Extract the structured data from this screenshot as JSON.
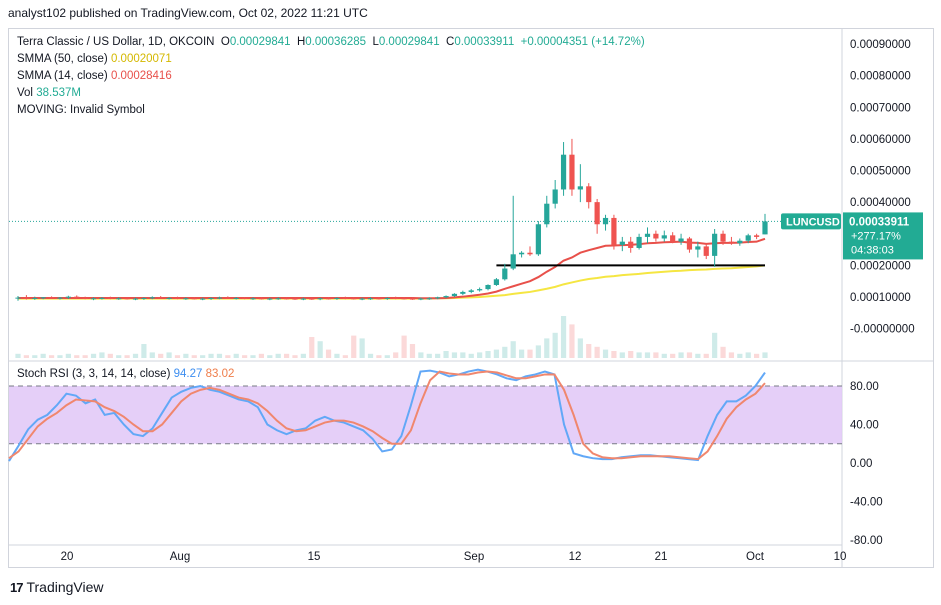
{
  "publisher": "analyst102 published on TradingView.com, Oct 02, 2022 11:21 UTC",
  "header": {
    "symbol": "Terra Classic / US Dollar, 1D, OKCOIN",
    "open_label": "O",
    "open": "0.00029841",
    "high_label": "H",
    "high": "0.00036285",
    "low_label": "L",
    "low": "0.00029841",
    "close_label": "C",
    "close": "0.00033911",
    "change": "+0.00004351 (+14.72%)"
  },
  "indicators": {
    "sma50_label": "SMMA (50, close)",
    "sma50_value": "0.00020071",
    "sma14_label": "SMMA (14, close)",
    "sma14_value": "0.00028416",
    "vol_label": "Vol",
    "vol_value": "38.537M",
    "moving_label": "MOVING: Invalid Symbol"
  },
  "price_tag": {
    "symbol": "LUNCUSD",
    "price": "0.00033911",
    "change_pct": "+277.17%",
    "countdown": "04:38:03"
  },
  "stoch": {
    "label": "Stoch RSI (3, 3, 14, 14, close)",
    "k_value": "94.27",
    "d_value": "83.02"
  },
  "logo_text": "TradingView",
  "colors": {
    "up": "#26a69a",
    "down": "#ef5350",
    "sma50": "#f5e642",
    "sma14": "#e8504a",
    "k_line": "#62a8f7",
    "d_line": "#f0876e",
    "stoch_band": "#e1c7f7",
    "tag": "#22ab94"
  },
  "chart_data": [
    {
      "type": "candlestick",
      "yaxis_ticks": [
        "0.00090000",
        "0.00080000",
        "0.00070000",
        "0.00060000",
        "0.00050000",
        "0.00040000",
        "0.00020000",
        "0.00010000",
        "-0.00000000"
      ],
      "xaxis_ticks": [
        "20",
        "Aug",
        "15",
        "Sep",
        "12",
        "21",
        "Oct",
        "10"
      ],
      "ylim": [
        -1e-05,
        0.00094
      ],
      "candles": [
        {
          "o": 9.5e-05,
          "h": 0.000103,
          "l": 8.8e-05,
          "c": 9.8e-05
        },
        {
          "o": 9.8e-05,
          "h": 0.000106,
          "l": 9.2e-05,
          "c": 9.6e-05
        },
        {
          "o": 9.6e-05,
          "h": 0.000101,
          "l": 9.1e-05,
          "c": 9.7e-05
        },
        {
          "o": 9.7e-05,
          "h": 0.0001,
          "l": 9.3e-05,
          "c": 9.9e-05
        },
        {
          "o": 9.9e-05,
          "h": 0.000102,
          "l": 9.4e-05,
          "c": 9.6e-05
        },
        {
          "o": 9.6e-05,
          "h": 0.0001,
          "l": 9.2e-05,
          "c": 9.8e-05
        },
        {
          "o": 9.8e-05,
          "h": 0.000104,
          "l": 9.4e-05,
          "c": 0.000101
        },
        {
          "o": 0.000101,
          "h": 0.000105,
          "l": 9.5e-05,
          "c": 9.7e-05
        },
        {
          "o": 9.7e-05,
          "h": 0.000101,
          "l": 9.3e-05,
          "c": 9.5e-05
        },
        {
          "o": 9.5e-05,
          "h": 9.9e-05,
          "l": 9e-05,
          "c": 9.6e-05
        },
        {
          "o": 9.6e-05,
          "h": 0.0001,
          "l": 9.2e-05,
          "c": 9.7e-05
        },
        {
          "o": 9.7e-05,
          "h": 0.000101,
          "l": 9.3e-05,
          "c": 9.5e-05
        },
        {
          "o": 9.5e-05,
          "h": 9.9e-05,
          "l": 9.1e-05,
          "c": 9.6e-05
        },
        {
          "o": 9.6e-05,
          "h": 9.9e-05,
          "l": 9.2e-05,
          "c": 9.4e-05
        },
        {
          "o": 9.4e-05,
          "h": 9.8e-05,
          "l": 9e-05,
          "c": 9.5e-05
        },
        {
          "o": 9.5e-05,
          "h": 9.9e-05,
          "l": 9.1e-05,
          "c": 9.7e-05
        },
        {
          "o": 9.7e-05,
          "h": 0.000102,
          "l": 9.3e-05,
          "c": 9.9e-05
        },
        {
          "o": 9.9e-05,
          "h": 0.000103,
          "l": 9.5e-05,
          "c": 9.6e-05
        },
        {
          "o": 9.6e-05,
          "h": 0.0001,
          "l": 9.2e-05,
          "c": 9.7e-05
        },
        {
          "o": 9.7e-05,
          "h": 0.000101,
          "l": 9.3e-05,
          "c": 9.5e-05
        },
        {
          "o": 9.5e-05,
          "h": 9.9e-05,
          "l": 9.1e-05,
          "c": 9.6e-05
        },
        {
          "o": 9.6e-05,
          "h": 0.0001,
          "l": 9.2e-05,
          "c": 9.4e-05
        },
        {
          "o": 9.4e-05,
          "h": 9.8e-05,
          "l": 9e-05,
          "c": 9.5e-05
        },
        {
          "o": 9.5e-05,
          "h": 9.9e-05,
          "l": 9.1e-05,
          "c": 9.7e-05
        },
        {
          "o": 9.7e-05,
          "h": 0.000101,
          "l": 9.3e-05,
          "c": 9.8e-05
        },
        {
          "o": 9.8e-05,
          "h": 0.000102,
          "l": 9.4e-05,
          "c": 9.6e-05
        },
        {
          "o": 9.6e-05,
          "h": 0.0001,
          "l": 9.2e-05,
          "c": 9.7e-05
        },
        {
          "o": 9.7e-05,
          "h": 0.0001,
          "l": 9.3e-05,
          "c": 9.5e-05
        },
        {
          "o": 9.5e-05,
          "h": 9.9e-05,
          "l": 9.1e-05,
          "c": 9.6e-05
        },
        {
          "o": 9.6e-05,
          "h": 0.0001,
          "l": 9.2e-05,
          "c": 9.4e-05
        },
        {
          "o": 9.4e-05,
          "h": 9.8e-05,
          "l": 9e-05,
          "c": 9.5e-05
        },
        {
          "o": 9.5e-05,
          "h": 9.9e-05,
          "l": 9.1e-05,
          "c": 9.6e-05
        },
        {
          "o": 9.6e-05,
          "h": 9.9e-05,
          "l": 9.2e-05,
          "c": 9.5e-05
        },
        {
          "o": 9.5e-05,
          "h": 9.9e-05,
          "l": 9.1e-05,
          "c": 9.4e-05
        },
        {
          "o": 9.4e-05,
          "h": 9.8e-05,
          "l": 9e-05,
          "c": 9.5e-05
        },
        {
          "o": 9.5e-05,
          "h": 9.8e-05,
          "l": 9.1e-05,
          "c": 9.4e-05
        },
        {
          "o": 9.4e-05,
          "h": 9.8e-05,
          "l": 9e-05,
          "c": 9.6e-05
        },
        {
          "o": 9.6e-05,
          "h": 0.0001,
          "l": 9.2e-05,
          "c": 9.5e-05
        },
        {
          "o": 9.5e-05,
          "h": 9.9e-05,
          "l": 9.1e-05,
          "c": 9.7e-05
        },
        {
          "o": 9.7e-05,
          "h": 0.000101,
          "l": 9.3e-05,
          "c": 9.6e-05
        },
        {
          "o": 9.6e-05,
          "h": 0.0001,
          "l": 9.2e-05,
          "c": 9.4e-05
        },
        {
          "o": 9.4e-05,
          "h": 9.8e-05,
          "l": 9e-05,
          "c": 9.5e-05
        },
        {
          "o": 9.5e-05,
          "h": 9.9e-05,
          "l": 9.1e-05,
          "c": 9.6e-05
        },
        {
          "o": 9.6e-05,
          "h": 0.0001,
          "l": 9.2e-05,
          "c": 9.5e-05
        },
        {
          "o": 9.5e-05,
          "h": 9.9e-05,
          "l": 9.1e-05,
          "c": 9.7e-05
        },
        {
          "o": 9.7e-05,
          "h": 0.000101,
          "l": 9.3e-05,
          "c": 9.6e-05
        },
        {
          "o": 9.6e-05,
          "h": 0.0001,
          "l": 9.2e-05,
          "c": 9.5e-05
        },
        {
          "o": 9.5e-05,
          "h": 9.9e-05,
          "l": 9.1e-05,
          "c": 9.4e-05
        },
        {
          "o": 9.4e-05,
          "h": 9.8e-05,
          "l": 9e-05,
          "c": 9.5e-05
        },
        {
          "o": 9.5e-05,
          "h": 9.9e-05,
          "l": 9.1e-05,
          "c": 9.6e-05
        },
        {
          "o": 9.6e-05,
          "h": 0.000101,
          "l": 9.3e-05,
          "c": 9.9e-05
        },
        {
          "o": 9.9e-05,
          "h": 0.000105,
          "l": 9.6e-05,
          "c": 0.000103
        },
        {
          "o": 0.000103,
          "h": 0.000112,
          "l": 0.0001,
          "c": 0.00011
        },
        {
          "o": 0.00011,
          "h": 0.00012,
          "l": 0.000106,
          "c": 0.000116
        },
        {
          "o": 0.000116,
          "h": 0.000125,
          "l": 0.000112,
          "c": 0.000121
        },
        {
          "o": 0.000121,
          "h": 0.00013,
          "l": 0.000117,
          "c": 0.000125
        },
        {
          "o": 0.000125,
          "h": 0.00014,
          "l": 0.000121,
          "c": 0.000138
        },
        {
          "o": 0.000138,
          "h": 0.00016,
          "l": 0.000135,
          "c": 0.000156
        },
        {
          "o": 0.000156,
          "h": 0.000205,
          "l": 0.000152,
          "c": 0.00019
        },
        {
          "o": 0.00019,
          "h": 0.00042,
          "l": 0.000185,
          "c": 0.000235
        },
        {
          "o": 0.000235,
          "h": 0.000245,
          "l": 0.000225,
          "c": 0.00024
        },
        {
          "o": 0.00024,
          "h": 0.00026,
          "l": 0.00023,
          "c": 0.000235
        },
        {
          "o": 0.000235,
          "h": 0.00034,
          "l": 0.00023,
          "c": 0.00033
        },
        {
          "o": 0.00033,
          "h": 0.00042,
          "l": 0.00032,
          "c": 0.000395
        },
        {
          "o": 0.000395,
          "h": 0.00047,
          "l": 0.00038,
          "c": 0.00044
        },
        {
          "o": 0.00044,
          "h": 0.00059,
          "l": 0.00042,
          "c": 0.00055
        },
        {
          "o": 0.00055,
          "h": 0.0006,
          "l": 0.00042,
          "c": 0.00044
        },
        {
          "o": 0.00044,
          "h": 0.00052,
          "l": 0.0004,
          "c": 0.00045
        },
        {
          "o": 0.00045,
          "h": 0.00046,
          "l": 0.00038,
          "c": 0.0004
        },
        {
          "o": 0.0004,
          "h": 0.00041,
          "l": 0.0003,
          "c": 0.00033
        },
        {
          "o": 0.00033,
          "h": 0.00036,
          "l": 0.00031,
          "c": 0.00035
        },
        {
          "o": 0.00035,
          "h": 0.00036,
          "l": 0.00025,
          "c": 0.000265
        },
        {
          "o": 0.000265,
          "h": 0.00029,
          "l": 0.000245,
          "c": 0.000275
        },
        {
          "o": 0.000275,
          "h": 0.00029,
          "l": 0.00024,
          "c": 0.000255
        },
        {
          "o": 0.000255,
          "h": 0.0003,
          "l": 0.00025,
          "c": 0.00029
        },
        {
          "o": 0.00029,
          "h": 0.00032,
          "l": 0.00027,
          "c": 0.0003
        },
        {
          "o": 0.0003,
          "h": 0.00031,
          "l": 0.000275,
          "c": 0.000285
        },
        {
          "o": 0.000285,
          "h": 0.00031,
          "l": 0.000275,
          "c": 0.000295
        },
        {
          "o": 0.000295,
          "h": 0.000305,
          "l": 0.00027,
          "c": 0.000275
        },
        {
          "o": 0.000275,
          "h": 0.0003,
          "l": 0.000265,
          "c": 0.000285
        },
        {
          "o": 0.000285,
          "h": 0.00029,
          "l": 0.00024,
          "c": 0.00025
        },
        {
          "o": 0.00025,
          "h": 0.000275,
          "l": 0.000225,
          "c": 0.00026
        },
        {
          "o": 0.00026,
          "h": 0.00027,
          "l": 0.00022,
          "c": 0.00023
        },
        {
          "o": 0.00023,
          "h": 0.000315,
          "l": 0.000195,
          "c": 0.0003
        },
        {
          "o": 0.0003,
          "h": 0.00031,
          "l": 0.000265,
          "c": 0.000275
        },
        {
          "o": 0.000275,
          "h": 0.00029,
          "l": 0.000265,
          "c": 0.00027
        },
        {
          "o": 0.00027,
          "h": 0.000285,
          "l": 0.000262,
          "c": 0.000278
        },
        {
          "o": 0.000278,
          "h": 0.0003,
          "l": 0.00027,
          "c": 0.000295
        },
        {
          "o": 0.000295,
          "h": 0.0003,
          "l": 0.000283,
          "c": 0.00029
        },
        {
          "o": 0.000298,
          "h": 0.000363,
          "l": 0.000298,
          "c": 0.000339
        }
      ],
      "volume": [
        3,
        2,
        2,
        3,
        2,
        2,
        3,
        2,
        2,
        3,
        4,
        3,
        2,
        2,
        3,
        10,
        4,
        3,
        4,
        2,
        3,
        2,
        2,
        3,
        3,
        2,
        3,
        2,
        2,
        3,
        2,
        3,
        3,
        2,
        3,
        15,
        12,
        6,
        3,
        2,
        16,
        14,
        3,
        2,
        2,
        4,
        16,
        10,
        4,
        3,
        3,
        5,
        4,
        4,
        3,
        4,
        5,
        6,
        8,
        12,
        6,
        6,
        9,
        14,
        18,
        30,
        24,
        14,
        10,
        8,
        6,
        5,
        4,
        5,
        4,
        4,
        4,
        3,
        3,
        4,
        4,
        3,
        3,
        18,
        8,
        4,
        3,
        4,
        3,
        4
      ],
      "smma50_label": "SMMA (50, close)",
      "smma50": [
        9.5e-05,
        9.5e-05,
        9.5e-05,
        9.5e-05,
        9.5e-05,
        9.5e-05,
        9.5e-05,
        9.5e-05,
        9.5e-05,
        9.5e-05,
        9.5e-05,
        9.5e-05,
        9.5e-05,
        9.5e-05,
        9.5e-05,
        9.5e-05,
        9.5e-05,
        9.5e-05,
        9.5e-05,
        9.5e-05,
        9.5e-05,
        9.5e-05,
        9.5e-05,
        9.5e-05,
        9.5e-05,
        9.5e-05,
        9.5e-05,
        9.5e-05,
        9.5e-05,
        9.5e-05,
        9.5e-05,
        9.5e-05,
        9.5e-05,
        9.5e-05,
        9.5e-05,
        9.5e-05,
        9.5e-05,
        9.5e-05,
        9.5e-05,
        9.5e-05,
        9.5e-05,
        9.5e-05,
        9.5e-05,
        9.5e-05,
        9.5e-05,
        9.5e-05,
        9.5e-05,
        9.5e-05,
        9.5e-05,
        9.5e-05,
        9.6e-05,
        9.6e-05,
        9.7e-05,
        9.8e-05,
        9.9e-05,
        0.0001,
        0.000102,
        0.000104,
        0.000106,
        0.00011,
        0.000113,
        0.000116,
        0.000121,
        0.000126,
        0.000132,
        0.00014,
        0.000146,
        0.000152,
        0.000157,
        0.00016,
        0.000164,
        0.000166,
        0.000169,
        0.000171,
        0.000173,
        0.000176,
        0.000178,
        0.00018,
        0.000182,
        0.000183,
        0.000185,
        0.000186,
        0.000187,
        0.000189,
        0.00019,
        0.000191,
        0.000193,
        0.000195,
        0.000197,
        0.0002
      ],
      "smma14_label": "SMMA (14, close)",
      "smma14": [
        9.7e-05,
        9.7e-05,
        9.7e-05,
        9.7e-05,
        9.7e-05,
        9.7e-05,
        9.7e-05,
        9.7e-05,
        9.7e-05,
        9.7e-05,
        9.7e-05,
        9.7e-05,
        9.7e-05,
        9.7e-05,
        9.7e-05,
        9.7e-05,
        9.7e-05,
        9.7e-05,
        9.7e-05,
        9.7e-05,
        9.7e-05,
        9.7e-05,
        9.7e-05,
        9.7e-05,
        9.7e-05,
        9.7e-05,
        9.7e-05,
        9.7e-05,
        9.7e-05,
        9.7e-05,
        9.7e-05,
        9.7e-05,
        9.7e-05,
        9.7e-05,
        9.7e-05,
        9.7e-05,
        9.7e-05,
        9.7e-05,
        9.7e-05,
        9.7e-05,
        9.7e-05,
        9.7e-05,
        9.7e-05,
        9.7e-05,
        9.7e-05,
        9.7e-05,
        9.7e-05,
        9.7e-05,
        9.6e-05,
        9.6e-05,
        9.6e-05,
        9.7e-05,
        9.9e-05,
        0.000101,
        0.000104,
        0.000107,
        0.000111,
        0.000117,
        0.000126,
        0.000134,
        0.000142,
        0.00015,
        0.000163,
        0.00018,
        0.000195,
        0.000215,
        0.000225,
        0.00024,
        0.000248,
        0.000255,
        0.000262,
        0.000263,
        0.000264,
        0.000265,
        0.000267,
        0.00027,
        0.000271,
        0.000273,
        0.000274,
        0.000275,
        0.000272,
        0.000271,
        0.000268,
        0.00027,
        0.000271,
        0.000271,
        0.000272,
        0.000274,
        0.000275,
        0.000284
      ],
      "support_level": 0.0002
    },
    {
      "type": "line",
      "title": "Stoch RSI (3, 3, 14, 14, close)",
      "yaxis_ticks": [
        "80.00",
        "40.00",
        "0.00",
        "-40.00",
        "-80.00"
      ],
      "ylim": [
        -80,
        100
      ],
      "overbought": 80,
      "oversold": 20,
      "series": [
        {
          "name": "K",
          "values": [
            2,
            18,
            35,
            45,
            50,
            60,
            72,
            70,
            62,
            66,
            50,
            52,
            40,
            30,
            28,
            36,
            52,
            68,
            74,
            78,
            80,
            76,
            74,
            70,
            66,
            64,
            58,
            40,
            34,
            30,
            34,
            36,
            44,
            48,
            44,
            42,
            38,
            34,
            25,
            12,
            14,
            28,
            60,
            95,
            96,
            94,
            90,
            92,
            95,
            97,
            95,
            92,
            88,
            86,
            90,
            92,
            95,
            92,
            40,
            10,
            7,
            5,
            4,
            4,
            6,
            7,
            8,
            8,
            7,
            6,
            5,
            4,
            3,
            28,
            50,
            64,
            64,
            70,
            80,
            94
          ],
          "values_note": ""
        },
        {
          "name": "D",
          "values": [
            5,
            12,
            25,
            38,
            46,
            52,
            60,
            66,
            65,
            64,
            58,
            54,
            48,
            40,
            33,
            33,
            40,
            52,
            64,
            72,
            76,
            78,
            76,
            72,
            68,
            66,
            62,
            54,
            44,
            36,
            33,
            34,
            38,
            42,
            44,
            44,
            42,
            38,
            33,
            26,
            20,
            20,
            34,
            62,
            86,
            95,
            93,
            92,
            92,
            94,
            95,
            94,
            91,
            88,
            88,
            90,
            92,
            92,
            76,
            50,
            20,
            10,
            6,
            5,
            5,
            6,
            7,
            7,
            7,
            7,
            6,
            5,
            4,
            12,
            28,
            46,
            58,
            66,
            72,
            83
          ]
        }
      ]
    }
  ]
}
